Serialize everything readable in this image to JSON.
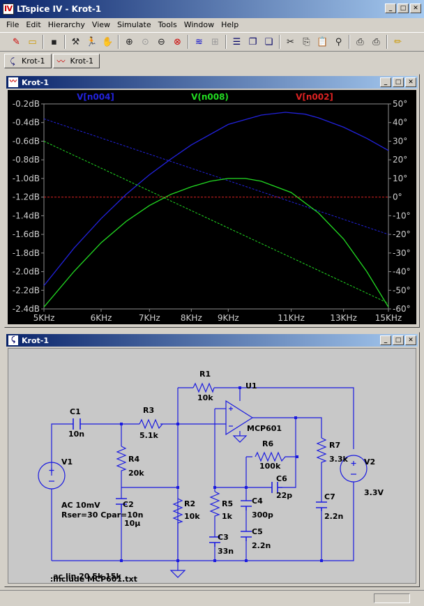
{
  "app": {
    "title": "LTspice IV - Krot-1"
  },
  "window_buttons": {
    "minimize": "_",
    "maximize": "□",
    "close": "✕"
  },
  "menu": [
    "File",
    "Edit",
    "Hierarchy",
    "View",
    "Simulate",
    "Tools",
    "Window",
    "Help"
  ],
  "toolbar_icons": [
    "new-schematic-icon",
    "open-icon",
    "save-icon",
    "control-panel-icon",
    "run-icon",
    "halt-icon",
    "zoom-in-icon",
    "zoom-pan-icon",
    "zoom-out-icon",
    "zoom-cancel-icon",
    "autoscale-icon",
    "fft-icon",
    "tile-horizontal-icon",
    "cascade-icon",
    "tile-vertical-icon",
    "cut-icon",
    "copy-icon",
    "paste-icon",
    "find-icon",
    "print-setup-icon",
    "print-icon",
    "draw-wire-icon"
  ],
  "tabs": [
    {
      "label": "Krot-1",
      "icon": "schematic-icon"
    },
    {
      "label": "Krot-1",
      "icon": "waveform-icon"
    }
  ],
  "plot_window": {
    "title": "Krot-1"
  },
  "schematic_window": {
    "title": "Krot-1"
  },
  "chart_data": {
    "type": "line",
    "background": "#000000",
    "x_scale": "log",
    "x_ticks": [
      "5KHz",
      "6KHz",
      "7KHz",
      "8KHz",
      "9KHz",
      "11KHz",
      "13KHz",
      "15KHz"
    ],
    "x_tick_values": [
      5000,
      6000,
      7000,
      8000,
      9000,
      11000,
      13000,
      15000
    ],
    "xlim": [
      5000,
      15000
    ],
    "y_left_ticks": [
      "-0.2dB",
      "-0.4dB",
      "-0.6dB",
      "-0.8dB",
      "-1.0dB",
      "-1.2dB",
      "-1.4dB",
      "-1.6dB",
      "-1.8dB",
      "-2.0dB",
      "-2.2dB",
      "-2.4dB"
    ],
    "y_left_lim": [
      -2.4,
      -0.2
    ],
    "y_right_ticks": [
      "50°",
      "40°",
      "30°",
      "20°",
      "10°",
      "0°",
      "-10°",
      "-20°",
      "-30°",
      "-40°",
      "-50°",
      "-60°"
    ],
    "y_right_lim": [
      -60,
      50
    ],
    "series": [
      {
        "name": "V[n004]",
        "color": "#2222dd",
        "magnitude_db": [
          [
            5000,
            -2.15
          ],
          [
            5500,
            -1.75
          ],
          [
            6000,
            -1.43
          ],
          [
            6500,
            -1.17
          ],
          [
            7000,
            -0.96
          ],
          [
            7500,
            -0.79
          ],
          [
            8000,
            -0.64
          ],
          [
            9000,
            -0.42
          ],
          [
            10000,
            -0.32
          ],
          [
            10800,
            -0.29
          ],
          [
            11500,
            -0.31
          ],
          [
            12000,
            -0.35
          ],
          [
            13000,
            -0.45
          ],
          [
            14000,
            -0.57
          ],
          [
            15000,
            -0.7
          ]
        ],
        "phase_deg": [
          [
            5000,
            42
          ],
          [
            15000,
            -20
          ]
        ]
      },
      {
        "name": "V(n008)",
        "color": "#22dd22",
        "magnitude_db": [
          [
            5000,
            -2.38
          ],
          [
            5500,
            -2.0
          ],
          [
            6000,
            -1.69
          ],
          [
            6500,
            -1.46
          ],
          [
            7000,
            -1.29
          ],
          [
            7500,
            -1.17
          ],
          [
            8000,
            -1.09
          ],
          [
            8500,
            -1.03
          ],
          [
            9000,
            -1.0
          ],
          [
            9500,
            -1.0
          ],
          [
            10000,
            -1.03
          ],
          [
            11000,
            -1.15
          ],
          [
            12000,
            -1.37
          ],
          [
            13000,
            -1.65
          ],
          [
            14000,
            -2.0
          ],
          [
            15000,
            -2.38
          ]
        ],
        "phase_deg": [
          [
            5000,
            30
          ],
          [
            15000,
            -57
          ]
        ]
      },
      {
        "name": "V[n002]",
        "color": "#dd2222",
        "magnitude_db": [
          [
            5000,
            -1.2
          ],
          [
            15000,
            -1.2
          ]
        ],
        "phase_deg": [
          [
            5000,
            0
          ],
          [
            15000,
            0
          ]
        ]
      }
    ]
  },
  "schematic": {
    "components": {
      "R1": {
        "name": "R1",
        "value": "10k"
      },
      "C1": {
        "name": "C1",
        "value": "10n"
      },
      "R3": {
        "name": "R3",
        "value": "5.1k"
      },
      "U1": {
        "name": "U1",
        "value": "MCP601"
      },
      "R6": {
        "name": "R6",
        "value": "100k"
      },
      "R7": {
        "name": "R7",
        "value": "3.3k"
      },
      "V1": {
        "name": "V1",
        "value": ""
      },
      "R4": {
        "name": "R4",
        "value": "20k"
      },
      "V2": {
        "name": "V2",
        "value": "3.3V"
      },
      "C6": {
        "name": "C6",
        "value": "22p"
      },
      "C2": {
        "name": "C2",
        "value": "10µ"
      },
      "R2": {
        "name": "R2",
        "value": "10k"
      },
      "R5": {
        "name": "R5",
        "value": "1k"
      },
      "C4": {
        "name": "C4",
        "value": "300p"
      },
      "C7": {
        "name": "C7",
        "value": "2.2n"
      },
      "C3": {
        "name": "C3",
        "value": "33n"
      },
      "C5": {
        "name": "C5",
        "value": "2.2n"
      }
    },
    "source_params": [
      "AC 10mV",
      "Rser=30 Cpar=10n"
    ],
    "directives": [
      ".include MCP601.txt",
      ".ac lin 20 5k 15k"
    ]
  }
}
